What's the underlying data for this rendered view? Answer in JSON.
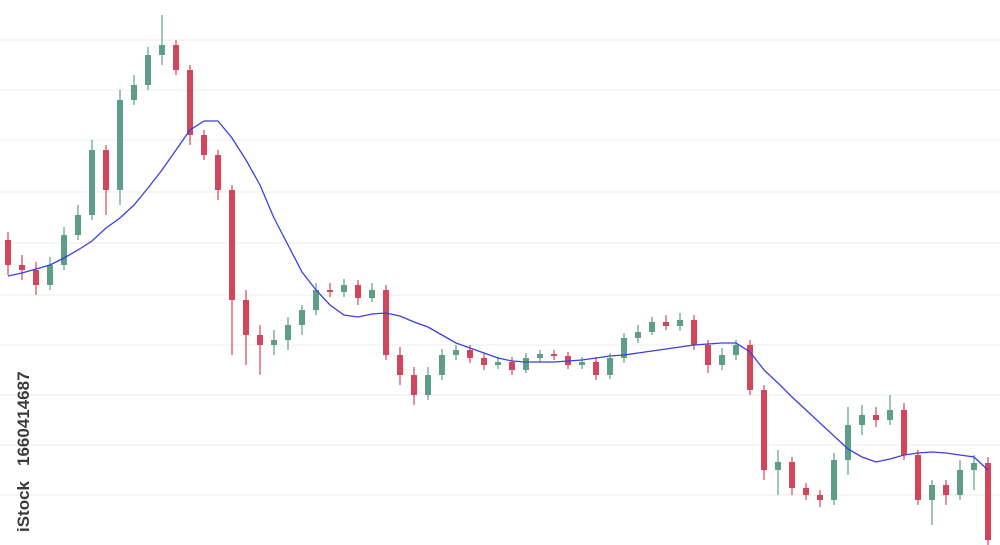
{
  "chart_data": {
    "type": "candlestick",
    "ylim": [
      0,
      545
    ],
    "gridlines": [
      505,
      455,
      405,
      353,
      302,
      250,
      200,
      150,
      100,
      50
    ],
    "up_color": "#5e9e86",
    "down_color": "#d2465b",
    "open": [
      305,
      280,
      275,
      260,
      280,
      310,
      330,
      395,
      355,
      445,
      460,
      490,
      500,
      475,
      410,
      390,
      355,
      245,
      210,
      200,
      205,
      220,
      235,
      255,
      253,
      260,
      247,
      255,
      190,
      170,
      150,
      170,
      190,
      195,
      187,
      180,
      183,
      175,
      187,
      191,
      189,
      180,
      183,
      170,
      187,
      207,
      213,
      223,
      219,
      225,
      200,
      180,
      190,
      200,
      155,
      75,
      83,
      57,
      50,
      45,
      85,
      120,
      130,
      125,
      135,
      90,
      45,
      60,
      50,
      75,
      82
    ],
    "high": [
      313,
      290,
      283,
      288,
      318,
      340,
      405,
      400,
      455,
      470,
      498,
      530,
      505,
      480,
      415,
      395,
      360,
      255,
      220,
      215,
      228,
      240,
      262,
      262,
      266,
      265,
      262,
      260,
      198,
      178,
      178,
      196,
      200,
      200,
      192,
      188,
      188,
      192,
      195,
      195,
      193,
      188,
      188,
      192,
      212,
      220,
      228,
      230,
      232,
      230,
      205,
      197,
      205,
      205,
      160,
      95,
      88,
      62,
      55,
      92,
      138,
      140,
      138,
      150,
      142,
      95,
      65,
      65,
      85,
      90,
      88
    ],
    "low": [
      270,
      265,
      250,
      255,
      275,
      305,
      325,
      330,
      340,
      440,
      455,
      480,
      470,
      400,
      385,
      345,
      190,
      180,
      170,
      190,
      195,
      210,
      230,
      248,
      248,
      240,
      243,
      185,
      160,
      140,
      145,
      165,
      185,
      182,
      175,
      176,
      170,
      172,
      183,
      185,
      176,
      176,
      165,
      166,
      182,
      202,
      210,
      215,
      214,
      195,
      172,
      175,
      185,
      150,
      65,
      50,
      50,
      45,
      38,
      40,
      70,
      110,
      118,
      120,
      85,
      40,
      20,
      40,
      45,
      55,
      0
    ],
    "close": [
      280,
      275,
      260,
      280,
      310,
      330,
      395,
      355,
      445,
      460,
      490,
      500,
      475,
      410,
      390,
      355,
      245,
      210,
      200,
      205,
      220,
      235,
      255,
      253,
      260,
      247,
      255,
      190,
      170,
      150,
      170,
      190,
      195,
      187,
      180,
      183,
      175,
      187,
      191,
      189,
      180,
      183,
      170,
      187,
      207,
      213,
      223,
      219,
      225,
      200,
      180,
      190,
      200,
      155,
      75,
      83,
      57,
      50,
      45,
      85,
      120,
      130,
      125,
      135,
      90,
      45,
      60,
      50,
      75,
      82,
      5
    ],
    "moving_average": {
      "color": "#3b3fe0",
      "values": [
        269,
        272,
        276,
        280,
        287,
        295,
        304,
        317,
        327,
        340,
        357,
        375,
        395,
        415,
        424,
        424,
        407,
        385,
        360,
        327,
        300,
        273,
        255,
        240,
        230,
        228,
        231,
        232,
        229,
        223,
        218,
        210,
        202,
        197,
        192,
        187,
        184,
        183,
        183,
        183,
        184,
        185,
        187,
        189,
        190,
        192,
        194,
        196,
        198,
        200,
        201,
        202,
        202,
        193,
        175,
        162,
        148,
        135,
        122,
        109,
        96,
        88,
        83,
        86,
        90,
        92,
        93,
        92,
        90,
        88,
        75
      ]
    }
  },
  "watermark": {
    "brand": "iStock",
    "id": "1660414687"
  }
}
